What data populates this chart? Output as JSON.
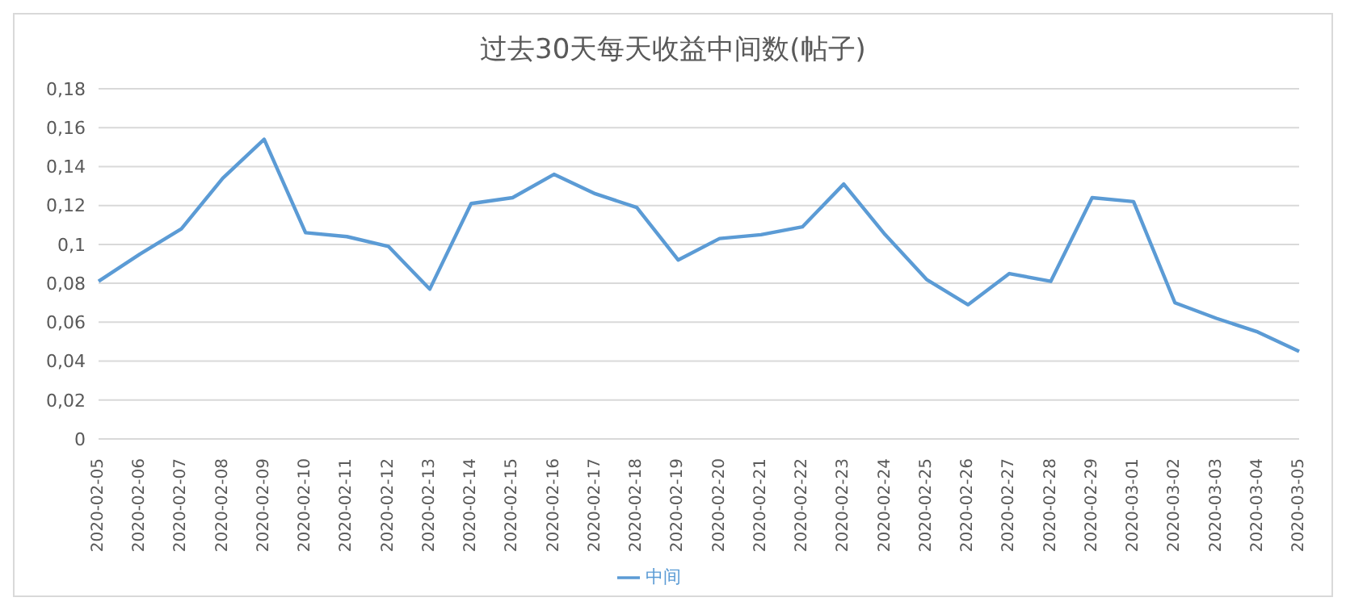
{
  "chart_data": {
    "type": "line",
    "title": "过去30天每天收益中间数(帖子)",
    "categories": [
      "2020-02-05",
      "2020-02-06",
      "2020-02-07",
      "2020-02-08",
      "2020-02-09",
      "2020-02-10",
      "2020-02-11",
      "2020-02-12",
      "2020-02-13",
      "2020-02-14",
      "2020-02-15",
      "2020-02-16",
      "2020-02-17",
      "2020-02-18",
      "2020-02-19",
      "2020-02-20",
      "2020-02-21",
      "2020-02-22",
      "2020-02-23",
      "2020-02-24",
      "2020-02-25",
      "2020-02-26",
      "2020-02-27",
      "2020-02-28",
      "2020-02-29",
      "2020-03-01",
      "2020-03-02",
      "2020-03-03",
      "2020-03-04",
      "2020-03-05"
    ],
    "series": [
      {
        "name": "中间",
        "color": "#5b9bd5",
        "values": [
          0.081,
          0.095,
          0.108,
          0.134,
          0.154,
          0.106,
          0.104,
          0.099,
          0.077,
          0.121,
          0.124,
          0.136,
          0.126,
          0.119,
          0.092,
          0.103,
          0.105,
          0.109,
          0.131,
          0.105,
          0.082,
          0.069,
          0.085,
          0.081,
          0.124,
          0.122,
          0.07,
          0.062,
          0.055,
          0.045
        ]
      }
    ],
    "ylim": [
      0,
      0.18
    ],
    "yticks": [
      0,
      {
        "value": 0.02,
        "label": "0,02"
      },
      {
        "value": 0.04,
        "label": "0,04"
      },
      {
        "value": 0.06,
        "label": "0,06"
      },
      {
        "value": 0.08,
        "label": "0,08"
      },
      {
        "value": 0.1,
        "label": "0,1"
      },
      {
        "value": 0.12,
        "label": "0,12"
      },
      {
        "value": 0.14,
        "label": "0,14"
      },
      {
        "value": 0.16,
        "label": "0,16"
      },
      {
        "value": 0.18,
        "label": "0,18"
      }
    ],
    "grid": "y",
    "legend": "bottom",
    "marker": "none",
    "line_style": "solid"
  }
}
